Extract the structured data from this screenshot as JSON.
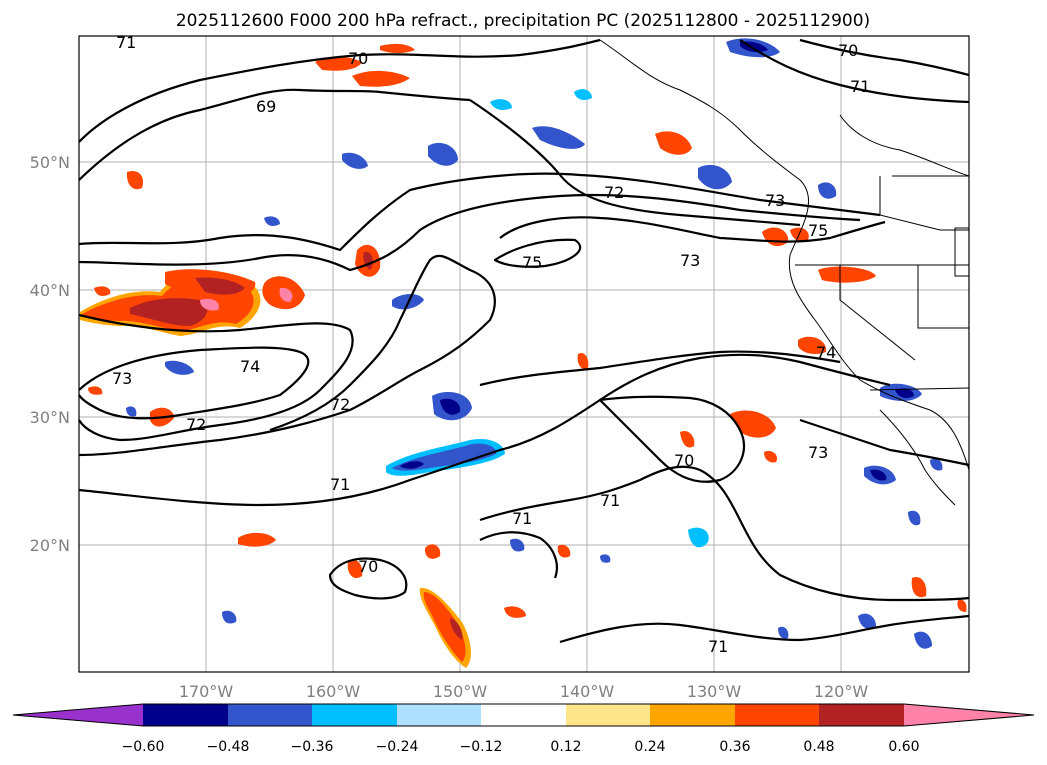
{
  "title": "2025112600 F000 200 hPa refract., precipitation PC (2025112800 - 2025112900)",
  "lat_labels": [
    "50°N",
    "40°N",
    "30°N",
    "20°N"
  ],
  "lon_labels": [
    "170°W",
    "160°W",
    "150°W",
    "140°W",
    "130°W",
    "120°W"
  ],
  "contour_labels": [
    "71",
    "70",
    "69",
    "72",
    "73",
    "75",
    "75",
    "73",
    "74",
    "73",
    "74",
    "72",
    "72",
    "71",
    "71",
    "71",
    "70",
    "70",
    "73",
    "71",
    "70",
    "71"
  ],
  "colorbar": {
    "ticks": [
      "−0.60",
      "−0.48",
      "−0.36",
      "−0.24",
      "−0.12",
      "0.12",
      "0.24",
      "0.36",
      "0.48",
      "0.60"
    ],
    "colors": [
      "#9932cc",
      "#00008b",
      "#3355cc",
      "#00bfff",
      "#b0e0ff",
      "#ffffff",
      "#ffe58a",
      "#ffa500",
      "#ff4500",
      "#b22222",
      "#ff82a9"
    ]
  }
}
